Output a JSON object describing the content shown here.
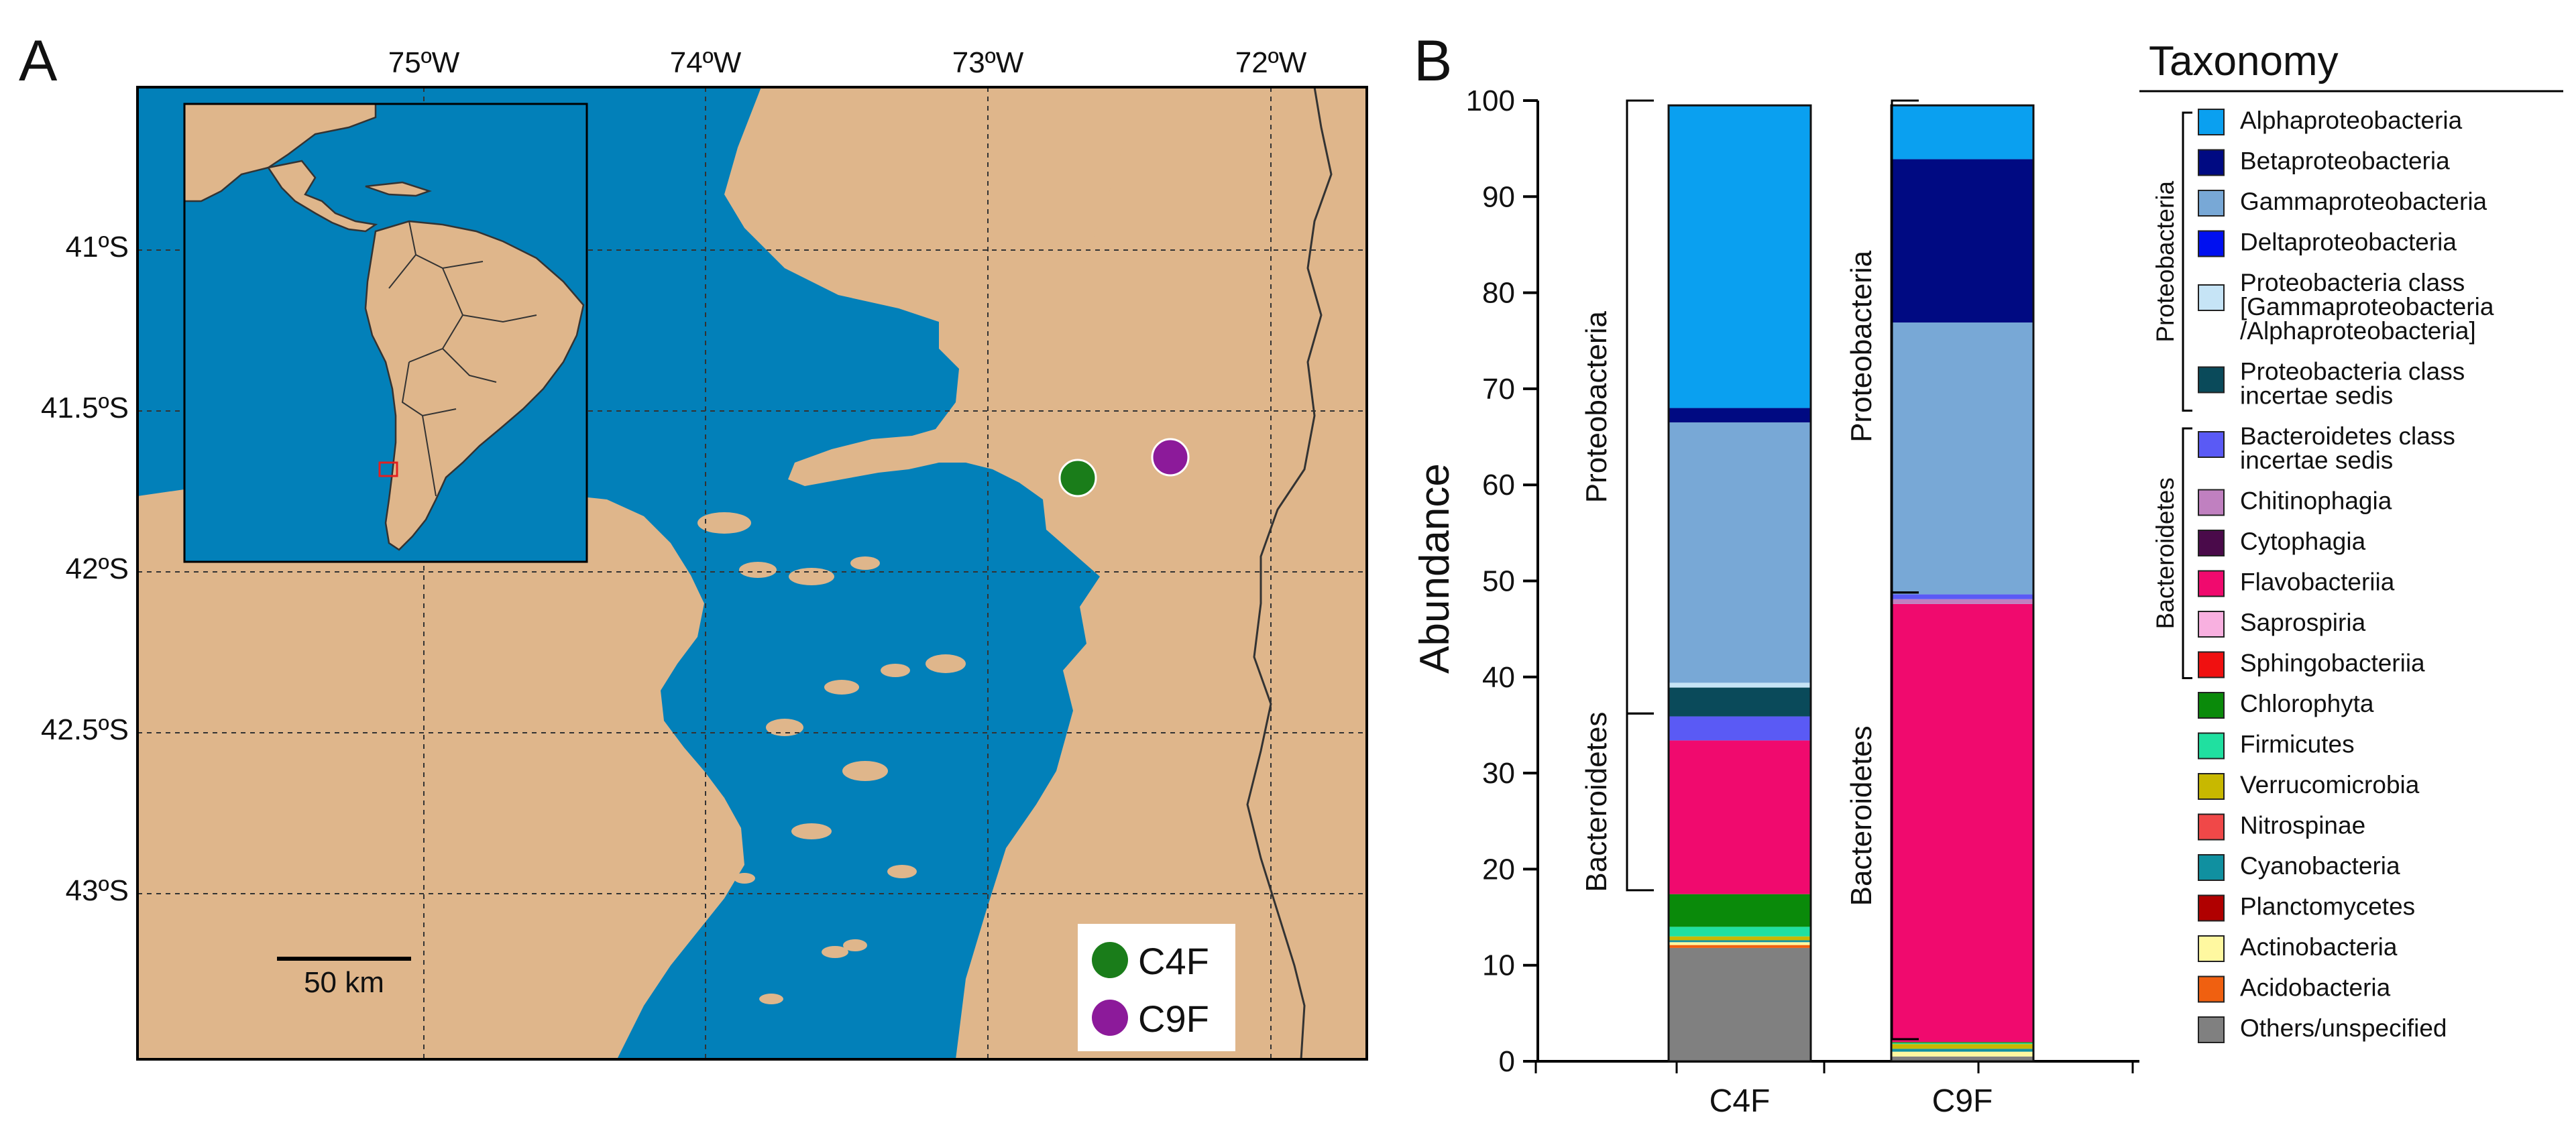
{
  "panels": {
    "a": "A",
    "b": "B"
  },
  "map": {
    "lon_labels": [
      "75ºW",
      "74ºW",
      "73ºW",
      "72ºW"
    ],
    "lat_labels": [
      "41ºS",
      "41.5ºS",
      "42ºS",
      "42.5ºS",
      "43ºS"
    ],
    "scale_label": "50 km",
    "colors": {
      "sea": "#0280b9",
      "land": "#dfb68b",
      "gridline": "#333333"
    },
    "stations": [
      {
        "label": "C4F",
        "color": "#1a7d1a"
      },
      {
        "label": "C9F",
        "color": "#8c1a9a"
      }
    ]
  },
  "legend": {
    "title": "Taxonomy",
    "groups": {
      "proteobacteria": "Proteobacteria",
      "bacteroidetes": "Bacteroidetes"
    },
    "items": [
      {
        "lines": [
          "Alphaproteobacteria"
        ],
        "color": "#0aa0f0"
      },
      {
        "lines": [
          "Betaproteobacteria"
        ],
        "color": "#000a82"
      },
      {
        "lines": [
          "Gammaproteobacteria"
        ],
        "color": "#78a8d6"
      },
      {
        "lines": [
          "Deltaproteobacteria"
        ],
        "color": "#0010f0"
      },
      {
        "lines": [
          "Proteobacteria class",
          "[Gammaproteobacteria",
          "/Alphaproteobacteria]"
        ],
        "color": "#c6e4f6"
      },
      {
        "lines": [
          "Proteobacteria class",
          "incertae sedis"
        ],
        "color": "#0a4a5a"
      },
      {
        "lines": [
          "Bacteroidetes class",
          "incertae sedis"
        ],
        "color": "#5a5af5"
      },
      {
        "lines": [
          "Chitinophagia"
        ],
        "color": "#c080c0"
      },
      {
        "lines": [
          "Cytophagia"
        ],
        "color": "#4a0a4a"
      },
      {
        "lines": [
          "Flavobacteriia"
        ],
        "color": "#f00a6e"
      },
      {
        "lines": [
          "Saprospiria"
        ],
        "color": "#f8b0e0"
      },
      {
        "lines": [
          "Sphingobacteriia"
        ],
        "color": "#f01010"
      },
      {
        "lines": [
          "Chlorophyta"
        ],
        "color": "#0a8a0a"
      },
      {
        "lines": [
          "Firmicutes"
        ],
        "color": "#20e0a0"
      },
      {
        "lines": [
          "Verrucomicrobia"
        ],
        "color": "#c8b800"
      },
      {
        "lines": [
          "Nitrospinae"
        ],
        "color": "#f04848"
      },
      {
        "lines": [
          "Cyanobacteria"
        ],
        "color": "#1090a0"
      },
      {
        "lines": [
          "Planctomycetes"
        ],
        "color": "#b00000"
      },
      {
        "lines": [
          "Actinobacteria"
        ],
        "color": "#fff8a0"
      },
      {
        "lines": [
          "Acidobacteria"
        ],
        "color": "#f06010"
      },
      {
        "lines": [
          "Others/unspecified"
        ],
        "color": "#808080"
      }
    ]
  },
  "chart_data": {
    "type": "bar",
    "stacked": true,
    "ylabel": "Abundance",
    "ylim": [
      0,
      100
    ],
    "yticks": [
      0,
      10,
      20,
      30,
      40,
      50,
      60,
      70,
      80,
      90,
      100
    ],
    "categories": [
      "C4F",
      "C9F"
    ],
    "series": [
      {
        "name": "Others/unspecified",
        "values": [
          11.8,
          0.5
        ]
      },
      {
        "name": "Acidobacteria",
        "values": [
          0.3,
          0
        ]
      },
      {
        "name": "Actinobacteria",
        "values": [
          0.3,
          0.5
        ]
      },
      {
        "name": "Planctomycetes",
        "values": [
          0,
          0
        ]
      },
      {
        "name": "Cyanobacteria",
        "values": [
          0.2,
          0.3
        ]
      },
      {
        "name": "Nitrospinae",
        "values": [
          0,
          0
        ]
      },
      {
        "name": "Verrucomicrobia",
        "values": [
          0.4,
          0.5
        ]
      },
      {
        "name": "Firmicutes",
        "values": [
          1.0,
          0.1
        ]
      },
      {
        "name": "Chlorophyta",
        "values": [
          3.4,
          0.1
        ]
      },
      {
        "name": "Sphingobacteriia",
        "values": [
          0,
          0
        ]
      },
      {
        "name": "Saprospiria",
        "values": [
          0,
          0
        ]
      },
      {
        "name": "Flavobacteriia",
        "values": [
          16.0,
          45.6
        ]
      },
      {
        "name": "Cytophagia",
        "values": [
          0,
          0
        ]
      },
      {
        "name": "Chitinophagia",
        "values": [
          0,
          0.5
        ]
      },
      {
        "name": "Bacteroidetes class incertae sedis",
        "values": [
          2.5,
          0.5
        ]
      },
      {
        "name": "Proteobacteria class incertae sedis",
        "values": [
          3.0,
          0
        ]
      },
      {
        "name": "Proteobacteria class [Gammaproteobacteria/Alphaproteobacteria]",
        "values": [
          0.5,
          0
        ]
      },
      {
        "name": "Deltaproteobacteria",
        "values": [
          0,
          0
        ]
      },
      {
        "name": "Gammaproteobacteria",
        "values": [
          27.1,
          28.3
        ]
      },
      {
        "name": "Betaproteobacteria",
        "values": [
          1.5,
          17.0
        ]
      },
      {
        "name": "Alphaproteobacteria",
        "values": [
          31.5,
          5.6
        ]
      }
    ],
    "group_brackets": [
      {
        "sample": "C4F",
        "label": "Proteobacteria",
        "range": [
          36.2,
          100
        ]
      },
      {
        "sample": "C4F",
        "label": "Bacteroidetes",
        "range": [
          17.8,
          36.2
        ]
      },
      {
        "sample": "C9F",
        "label": "Proteobacteria",
        "range": [
          48.8,
          100
        ]
      },
      {
        "sample": "C9F",
        "label": "Bacteroidetes",
        "range": [
          2.3,
          48.8
        ]
      }
    ]
  }
}
